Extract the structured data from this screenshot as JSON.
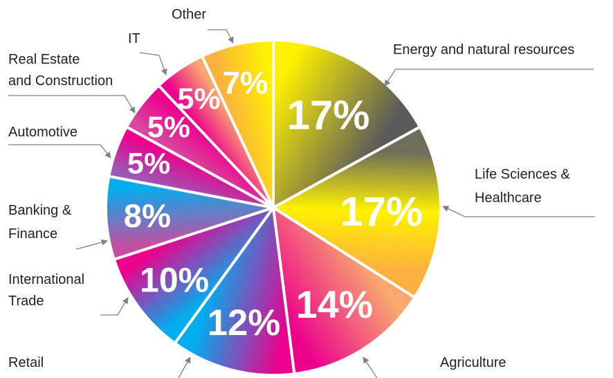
{
  "chart_data": {
    "type": "pie",
    "categories": [
      [
        "Energy and natural resources"
      ],
      [
        "Life Sciences &",
        "Healthcare"
      ],
      [
        "Agriculture"
      ],
      [
        "Retail"
      ],
      [
        "International",
        "Trade"
      ],
      [
        "Banking &",
        "Finance"
      ],
      [
        "Automotive"
      ],
      [
        "Real Estate",
        "and Construction"
      ],
      [
        "IT"
      ],
      [
        "Other"
      ]
    ],
    "values": [
      17,
      17,
      14,
      12,
      10,
      8,
      5,
      5,
      5,
      7
    ],
    "value_labels": [
      "17%",
      "17%",
      "14%",
      "12%",
      "10%",
      "8%",
      "5%",
      "5%",
      "5%",
      "7%"
    ],
    "colors": [
      [
        "#fff200",
        "#5a5a5a"
      ],
      [
        "#6e6e5a",
        "#fff200",
        "#fbb040"
      ],
      [
        "#f9a870",
        "#ec008c"
      ],
      [
        "#ec008c",
        "#00aeef"
      ],
      [
        "#00aeef",
        "#ec008c"
      ],
      [
        "#c44fa0",
        "#00aeef"
      ],
      [
        "#9b59b6",
        "#ec008c"
      ],
      [
        "#d84aa0",
        "#ec008c"
      ],
      [
        "#ec008c",
        "#f9a870"
      ],
      [
        "#fbb040",
        "#fff200"
      ]
    ]
  }
}
